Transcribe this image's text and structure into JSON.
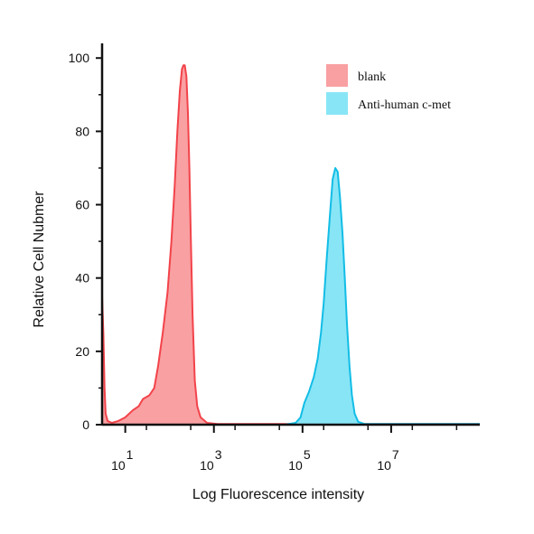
{
  "chart_data": {
    "type": "area",
    "xlabel": "Log Fluorescence intensity",
    "ylabel": "Relative Cell Nubmer",
    "xscale": "log",
    "xlim": [
      3,
      1000000000
    ],
    "ylim": [
      0,
      104
    ],
    "y_ticks": [
      0,
      20,
      40,
      60,
      80,
      100
    ],
    "x_tick_labels": [
      {
        "base": "10",
        "exp": "1",
        "value": 10
      },
      {
        "base": "10",
        "exp": "3",
        "value": 1000
      },
      {
        "base": "10",
        "exp": "5",
        "value": 100000
      },
      {
        "base": "10",
        "exp": "7",
        "value": 10000000
      }
    ],
    "x_minor_ticks": [
      30,
      300,
      3000,
      30000,
      300000,
      3000000,
      30000000,
      300000000
    ],
    "grid": false,
    "legend_position": "top-right",
    "series": [
      {
        "name": "blank",
        "color": "#f2434a",
        "fill": "#f9a0a2",
        "points": [
          [
            3,
            35
          ],
          [
            3.2,
            25
          ],
          [
            3.4,
            10
          ],
          [
            3.6,
            3
          ],
          [
            4,
            1
          ],
          [
            5,
            0.5
          ],
          [
            7,
            1
          ],
          [
            10,
            2
          ],
          [
            15,
            4
          ],
          [
            20,
            5
          ],
          [
            25,
            7
          ],
          [
            35,
            8
          ],
          [
            45,
            10
          ],
          [
            55,
            16
          ],
          [
            70,
            25
          ],
          [
            90,
            36
          ],
          [
            110,
            50
          ],
          [
            130,
            65
          ],
          [
            150,
            80
          ],
          [
            170,
            91
          ],
          [
            190,
            97
          ],
          [
            205,
            98
          ],
          [
            220,
            98
          ],
          [
            240,
            95
          ],
          [
            260,
            85
          ],
          [
            280,
            70
          ],
          [
            300,
            52
          ],
          [
            330,
            30
          ],
          [
            370,
            12
          ],
          [
            420,
            5
          ],
          [
            500,
            2
          ],
          [
            700,
            0.5
          ],
          [
            1200,
            0.2
          ],
          [
            1000000000,
            0.2
          ]
        ]
      },
      {
        "name": "Anti-human c-met",
        "color": "#12bde6",
        "fill": "#88e5f6",
        "points": [
          [
            3,
            0
          ],
          [
            40000,
            0
          ],
          [
            70000,
            0.5
          ],
          [
            90000,
            2
          ],
          [
            110000,
            6
          ],
          [
            140000,
            9
          ],
          [
            180000,
            13
          ],
          [
            220000,
            18
          ],
          [
            260000,
            25
          ],
          [
            300000,
            33
          ],
          [
            350000,
            45
          ],
          [
            420000,
            58
          ],
          [
            480000,
            67
          ],
          [
            550000,
            70
          ],
          [
            620000,
            69
          ],
          [
            700000,
            62
          ],
          [
            800000,
            52
          ],
          [
            900000,
            40
          ],
          [
            1000000,
            28
          ],
          [
            1150000,
            16
          ],
          [
            1300000,
            8
          ],
          [
            1500000,
            3
          ],
          [
            1800000,
            0.8
          ],
          [
            2500000,
            0.2
          ],
          [
            1000000000,
            0.2
          ]
        ]
      }
    ]
  }
}
